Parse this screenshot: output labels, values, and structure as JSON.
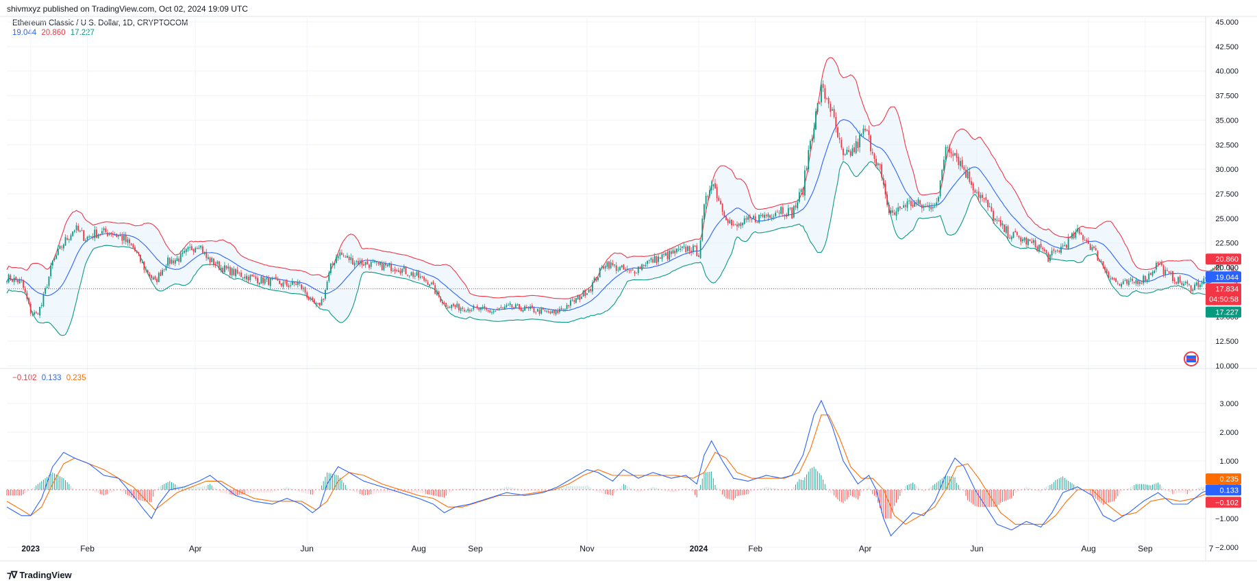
{
  "header": {
    "published": "shivmxyz published on TradingView.com, Oct 02, 2024 19:09 UTC"
  },
  "legend": {
    "title": "Ethereum Classic  / U.S. Dollar, 1D, CRYPTOCOM",
    "bb_values": [
      "19.044",
      "20.860",
      "17.227"
    ],
    "macd_values": [
      "−0.102",
      "0.133",
      "0.235"
    ]
  },
  "footer": {
    "brand": "TradingView"
  },
  "colors": {
    "up": "#089981",
    "down": "#f23645",
    "basis": "#2962ff",
    "upper": "#f23645",
    "lower": "#089981",
    "fill": "#e3f0fb",
    "signal": "#ff6d00",
    "macd": "#2962ff"
  },
  "chart_data": [
    {
      "type": "candlestick",
      "title": "Ethereum Classic  / U.S. Dollar, 1D, CRYPTOCOM",
      "ylim": [
        10,
        45
      ],
      "yticks": [
        "45.000",
        "42.500",
        "40.000",
        "37.500",
        "35.000",
        "32.500",
        "30.000",
        "27.500",
        "25.000",
        "22.500",
        "20.000",
        "15.000",
        "12.500",
        "10.000"
      ],
      "ytick_values": [
        45,
        42.5,
        40,
        37.5,
        35,
        32.5,
        30,
        27.5,
        25,
        22.5,
        20,
        15,
        12.5,
        10
      ],
      "x_labels": [
        "2023",
        "Feb",
        "Apr",
        "Jun",
        "Aug",
        "Sep",
        "Nov",
        "2024",
        "Feb",
        "Apr",
        "Jun",
        "Aug",
        "Sep",
        "7"
      ],
      "x_label_days": [
        0,
        31,
        90,
        151,
        212,
        243,
        304,
        365,
        396,
        456,
        517,
        578,
        609,
        645
      ],
      "x_range_days": [
        -13,
        642
      ],
      "price_anchors": [
        [
          -13,
          19.0
        ],
        [
          -5,
          18.5
        ],
        [
          0,
          15.5
        ],
        [
          3,
          15.2
        ],
        [
          6,
          16.2
        ],
        [
          12,
          20.5
        ],
        [
          18,
          22.5
        ],
        [
          24,
          24.0
        ],
        [
          30,
          23.0
        ],
        [
          36,
          23.5
        ],
        [
          44,
          23.6
        ],
        [
          50,
          23.0
        ],
        [
          56,
          22.0
        ],
        [
          62,
          20.0
        ],
        [
          68,
          18.5
        ],
        [
          74,
          20.5
        ],
        [
          82,
          21.0
        ],
        [
          88,
          22.0
        ],
        [
          92,
          22.5
        ],
        [
          96,
          21.0
        ],
        [
          104,
          20.0
        ],
        [
          114,
          19.3
        ],
        [
          124,
          18.8
        ],
        [
          134,
          18.5
        ],
        [
          140,
          18.2
        ],
        [
          146,
          18.4
        ],
        [
          150,
          17.5
        ],
        [
          153,
          16.5
        ],
        [
          157,
          16.0
        ],
        [
          160,
          17.0
        ],
        [
          164,
          20.0
        ],
        [
          168,
          21.5
        ],
        [
          172,
          21.0
        ],
        [
          180,
          20.5
        ],
        [
          190,
          20.2
        ],
        [
          200,
          20.0
        ],
        [
          210,
          19.2
        ],
        [
          218,
          18.5
        ],
        [
          222,
          17.3
        ],
        [
          226,
          16.3
        ],
        [
          232,
          16.0
        ],
        [
          242,
          15.8
        ],
        [
          252,
          15.5
        ],
        [
          262,
          16.0
        ],
        [
          270,
          15.8
        ],
        [
          280,
          15.5
        ],
        [
          286,
          15.3
        ],
        [
          292,
          16.0
        ],
        [
          300,
          17.0
        ],
        [
          306,
          18.0
        ],
        [
          314,
          20.5
        ],
        [
          320,
          20.0
        ],
        [
          328,
          19.5
        ],
        [
          336,
          20.5
        ],
        [
          344,
          21.0
        ],
        [
          352,
          21.5
        ],
        [
          360,
          22.0
        ],
        [
          365,
          21.5
        ],
        [
          368,
          26.0
        ],
        [
          372,
          29.0
        ],
        [
          378,
          26.0
        ],
        [
          384,
          24.0
        ],
        [
          390,
          24.5
        ],
        [
          396,
          25.0
        ],
        [
          404,
          25.5
        ],
        [
          410,
          26.0
        ],
        [
          416,
          25.5
        ],
        [
          422,
          28.0
        ],
        [
          426,
          33.0
        ],
        [
          432,
          38.0
        ],
        [
          436,
          37.0
        ],
        [
          440,
          34.0
        ],
        [
          444,
          31.0
        ],
        [
          450,
          32.0
        ],
        [
          456,
          34.0
        ],
        [
          460,
          32.0
        ],
        [
          464,
          30.0
        ],
        [
          468,
          26.0
        ],
        [
          472,
          25.5
        ],
        [
          478,
          26.5
        ],
        [
          484,
          26.5
        ],
        [
          490,
          26.0
        ],
        [
          496,
          27.0
        ],
        [
          500,
          32.5
        ],
        [
          504,
          32.0
        ],
        [
          510,
          30.0
        ],
        [
          516,
          28.0
        ],
        [
          522,
          26.5
        ],
        [
          528,
          24.5
        ],
        [
          534,
          23.5
        ],
        [
          540,
          23.0
        ],
        [
          546,
          22.5
        ],
        [
          552,
          22.0
        ],
        [
          556,
          21.0
        ],
        [
          560,
          21.5
        ],
        [
          566,
          22.5
        ],
        [
          572,
          23.5
        ],
        [
          576,
          23.0
        ],
        [
          580,
          22.0
        ],
        [
          585,
          20.5
        ],
        [
          590,
          19.0
        ],
        [
          595,
          18.2
        ],
        [
          602,
          18.5
        ],
        [
          610,
          19.0
        ],
        [
          616,
          20.5
        ],
        [
          620,
          19.5
        ],
        [
          628,
          18.5
        ],
        [
          634,
          18.0
        ],
        [
          640,
          18.5
        ],
        [
          646,
          19.5
        ],
        [
          652,
          21.0
        ],
        [
          656,
          19.5
        ],
        [
          660,
          17.8
        ]
      ],
      "last_price": "17.834",
      "countdown": "04:50:58",
      "last_price_value": 17.834,
      "bb_upper_value": 20.86,
      "bb_basis_value": 19.044,
      "bb_lower_value": 17.227
    },
    {
      "type": "macd",
      "ylim": [
        -2.5,
        3.5
      ],
      "yticks": [
        "3.000",
        "2.000",
        "1.000",
        "−1.000",
        "−2.000"
      ],
      "ytick_values": [
        3,
        2,
        1,
        -1,
        -2
      ],
      "macd_anchors": [
        [
          -13,
          -0.6
        ],
        [
          -5,
          -0.9
        ],
        [
          0,
          -0.9
        ],
        [
          6,
          -0.3
        ],
        [
          12,
          0.8
        ],
        [
          18,
          1.3
        ],
        [
          24,
          1.1
        ],
        [
          32,
          0.9
        ],
        [
          40,
          0.5
        ],
        [
          48,
          0.4
        ],
        [
          56,
          -0.2
        ],
        [
          62,
          -0.7
        ],
        [
          66,
          -1.0
        ],
        [
          70,
          -0.5
        ],
        [
          76,
          0.0
        ],
        [
          84,
          0.1
        ],
        [
          92,
          0.3
        ],
        [
          98,
          0.5
        ],
        [
          104,
          0.2
        ],
        [
          112,
          -0.2
        ],
        [
          122,
          -0.4
        ],
        [
          132,
          -0.5
        ],
        [
          140,
          -0.3
        ],
        [
          148,
          -0.5
        ],
        [
          154,
          -0.8
        ],
        [
          158,
          -0.6
        ],
        [
          162,
          0.2
        ],
        [
          168,
          0.8
        ],
        [
          174,
          0.6
        ],
        [
          182,
          0.3
        ],
        [
          192,
          0.1
        ],
        [
          202,
          -0.1
        ],
        [
          212,
          -0.3
        ],
        [
          220,
          -0.5
        ],
        [
          226,
          -0.8
        ],
        [
          232,
          -0.6
        ],
        [
          240,
          -0.5
        ],
        [
          250,
          -0.3
        ],
        [
          260,
          -0.1
        ],
        [
          270,
          -0.2
        ],
        [
          280,
          -0.1
        ],
        [
          288,
          0.1
        ],
        [
          296,
          0.4
        ],
        [
          304,
          0.7
        ],
        [
          310,
          0.6
        ],
        [
          318,
          0.3
        ],
        [
          324,
          0.7
        ],
        [
          332,
          0.4
        ],
        [
          340,
          0.6
        ],
        [
          350,
          0.4
        ],
        [
          358,
          0.5
        ],
        [
          364,
          0.2
        ],
        [
          368,
          1.2
        ],
        [
          372,
          1.7
        ],
        [
          378,
          1.0
        ],
        [
          384,
          0.4
        ],
        [
          392,
          0.3
        ],
        [
          402,
          0.5
        ],
        [
          410,
          0.4
        ],
        [
          416,
          0.5
        ],
        [
          422,
          1.2
        ],
        [
          428,
          2.6
        ],
        [
          432,
          3.1
        ],
        [
          438,
          2.2
        ],
        [
          444,
          1.0
        ],
        [
          452,
          0.2
        ],
        [
          458,
          0.5
        ],
        [
          462,
          0.0
        ],
        [
          466,
          -1.0
        ],
        [
          470,
          -1.6
        ],
        [
          476,
          -1.2
        ],
        [
          482,
          -0.8
        ],
        [
          488,
          -0.9
        ],
        [
          494,
          -0.4
        ],
        [
          500,
          0.5
        ],
        [
          505,
          1.1
        ],
        [
          510,
          0.8
        ],
        [
          516,
          0.0
        ],
        [
          522,
          -0.6
        ],
        [
          528,
          -1.2
        ],
        [
          536,
          -1.4
        ],
        [
          544,
          -1.1
        ],
        [
          552,
          -1.3
        ],
        [
          558,
          -0.8
        ],
        [
          564,
          -0.1
        ],
        [
          572,
          0.1
        ],
        [
          580,
          -0.2
        ],
        [
          586,
          -0.9
        ],
        [
          592,
          -1.1
        ],
        [
          600,
          -0.8
        ],
        [
          608,
          -0.4
        ],
        [
          616,
          -0.1
        ],
        [
          624,
          -0.5
        ],
        [
          632,
          -0.5
        ],
        [
          640,
          -0.1
        ],
        [
          648,
          0.1
        ],
        [
          654,
          0.45
        ],
        [
          660,
          0.133
        ]
      ],
      "signal_anchors": [
        [
          -13,
          -0.4
        ],
        [
          -5,
          -0.7
        ],
        [
          0,
          -0.9
        ],
        [
          6,
          -0.6
        ],
        [
          12,
          0.2
        ],
        [
          18,
          0.9
        ],
        [
          24,
          1.1
        ],
        [
          32,
          0.9
        ],
        [
          40,
          0.7
        ],
        [
          48,
          0.4
        ],
        [
          56,
          0.1
        ],
        [
          62,
          -0.3
        ],
        [
          68,
          -0.7
        ],
        [
          74,
          -0.4
        ],
        [
          80,
          -0.1
        ],
        [
          88,
          0.1
        ],
        [
          96,
          0.3
        ],
        [
          104,
          0.3
        ],
        [
          112,
          0.0
        ],
        [
          122,
          -0.3
        ],
        [
          132,
          -0.4
        ],
        [
          140,
          -0.4
        ],
        [
          148,
          -0.4
        ],
        [
          156,
          -0.7
        ],
        [
          162,
          -0.4
        ],
        [
          168,
          0.3
        ],
        [
          174,
          0.6
        ],
        [
          182,
          0.5
        ],
        [
          192,
          0.2
        ],
        [
          202,
          0.0
        ],
        [
          212,
          -0.2
        ],
        [
          220,
          -0.3
        ],
        [
          228,
          -0.6
        ],
        [
          236,
          -0.6
        ],
        [
          246,
          -0.4
        ],
        [
          256,
          -0.2
        ],
        [
          266,
          -0.2
        ],
        [
          276,
          -0.1
        ],
        [
          286,
          0.0
        ],
        [
          294,
          0.2
        ],
        [
          302,
          0.5
        ],
        [
          310,
          0.7
        ],
        [
          318,
          0.5
        ],
        [
          326,
          0.5
        ],
        [
          334,
          0.5
        ],
        [
          342,
          0.5
        ],
        [
          352,
          0.5
        ],
        [
          362,
          0.4
        ],
        [
          368,
          0.6
        ],
        [
          374,
          1.3
        ],
        [
          380,
          1.1
        ],
        [
          386,
          0.6
        ],
        [
          394,
          0.4
        ],
        [
          404,
          0.4
        ],
        [
          412,
          0.4
        ],
        [
          420,
          0.6
        ],
        [
          426,
          1.4
        ],
        [
          432,
          2.6
        ],
        [
          436,
          2.6
        ],
        [
          442,
          1.8
        ],
        [
          448,
          0.8
        ],
        [
          454,
          0.4
        ],
        [
          460,
          0.4
        ],
        [
          466,
          0.0
        ],
        [
          472,
          -0.9
        ],
        [
          478,
          -1.2
        ],
        [
          486,
          -0.9
        ],
        [
          494,
          -0.6
        ],
        [
          500,
          0.0
        ],
        [
          506,
          0.8
        ],
        [
          512,
          0.9
        ],
        [
          518,
          0.4
        ],
        [
          524,
          -0.2
        ],
        [
          530,
          -0.8
        ],
        [
          538,
          -1.2
        ],
        [
          546,
          -1.2
        ],
        [
          554,
          -1.2
        ],
        [
          560,
          -0.9
        ],
        [
          566,
          -0.4
        ],
        [
          572,
          0.0
        ],
        [
          580,
          0.0
        ],
        [
          588,
          -0.5
        ],
        [
          596,
          -0.9
        ],
        [
          604,
          -0.8
        ],
        [
          612,
          -0.4
        ],
        [
          620,
          -0.3
        ],
        [
          628,
          -0.4
        ],
        [
          636,
          -0.3
        ],
        [
          644,
          -0.1
        ],
        [
          652,
          0.15
        ],
        [
          656,
          0.3
        ],
        [
          660,
          0.235
        ]
      ],
      "macd_value": 0.133,
      "signal_value": 0.235,
      "hist_value": -0.102
    }
  ]
}
